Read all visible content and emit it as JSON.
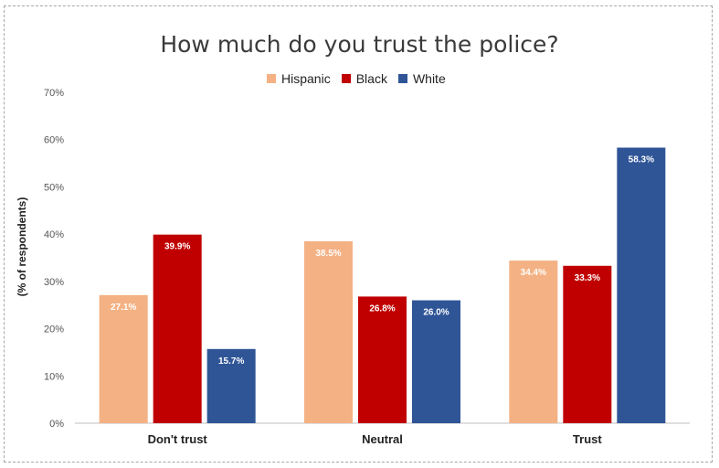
{
  "chart_data": {
    "type": "bar",
    "title": "How much do you trust the police?",
    "ylabel": "(% of respondents)",
    "xlabel": "",
    "ylim": [
      0,
      70
    ],
    "yticks": [
      "0%",
      "10%",
      "20%",
      "30%",
      "40%",
      "50%",
      "60%",
      "70%"
    ],
    "categories": [
      "Don't trust",
      "Neutral",
      "Trust"
    ],
    "legend_position": "top",
    "grid": false,
    "series": [
      {
        "name": "Hispanic",
        "color": "#f4b183",
        "values": [
          27.1,
          38.5,
          34.4
        ],
        "labels": [
          "27.1%",
          "38.5%",
          "34.4%"
        ]
      },
      {
        "name": "Black",
        "color": "#c00000",
        "values": [
          39.9,
          26.8,
          33.3
        ],
        "labels": [
          "39.9%",
          "26.8%",
          "33.3%"
        ]
      },
      {
        "name": "White",
        "color": "#2f5597",
        "values": [
          15.7,
          26.0,
          58.3
        ],
        "labels": [
          "15.7%",
          "26.0%",
          "58.3%"
        ]
      }
    ]
  }
}
